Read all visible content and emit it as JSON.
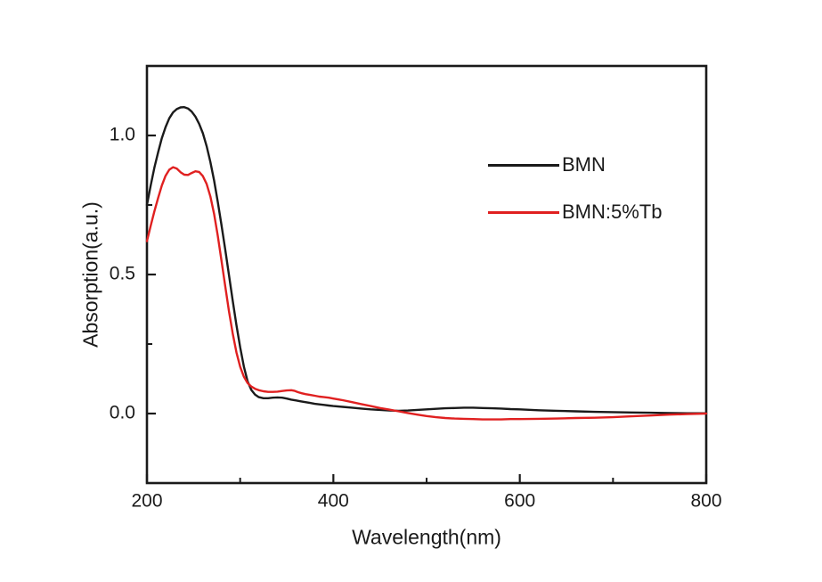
{
  "figure": {
    "background": "#ffffff",
    "frame_color": "#1a1a1a"
  },
  "chart_data": {
    "type": "line",
    "title": "",
    "xlabel": "Wavelength(nm)",
    "ylabel": "Absorption(a.u.)",
    "xlim": [
      200,
      800
    ],
    "ylim": [
      -0.25,
      1.25
    ],
    "grid": false,
    "frame": true,
    "tick_direction": "in",
    "x_major_ticks": [
      200,
      400,
      600,
      800
    ],
    "x_tick_labels": [
      "200",
      "400",
      "600",
      "800"
    ],
    "x_minor_ticks": [
      300,
      500,
      700
    ],
    "y_major_ticks": [
      0.0,
      0.5,
      1.0
    ],
    "y_tick_labels": [
      "0.0",
      "0.5",
      "1.0"
    ],
    "y_minor_ticks": [
      0.25,
      0.75
    ],
    "legend": {
      "position": "upper-right-inside",
      "entries": [
        {
          "label": "BMN",
          "color": "#1a1a1a"
        },
        {
          "label": "BMN:5%Tb",
          "color": "#e02020"
        }
      ]
    },
    "series": [
      {
        "name": "BMN",
        "color": "#1a1a1a",
        "peak_nm": 240,
        "peak_value": 1.1,
        "points": [
          [
            200,
            0.75
          ],
          [
            204,
            0.82
          ],
          [
            208,
            0.885
          ],
          [
            212,
            0.94
          ],
          [
            216,
            0.99
          ],
          [
            220,
            1.03
          ],
          [
            224,
            1.062
          ],
          [
            228,
            1.083
          ],
          [
            232,
            1.095
          ],
          [
            236,
            1.101
          ],
          [
            240,
            1.102
          ],
          [
            244,
            1.097
          ],
          [
            248,
            1.086
          ],
          [
            252,
            1.068
          ],
          [
            256,
            1.042
          ],
          [
            260,
            1.008
          ],
          [
            264,
            0.962
          ],
          [
            268,
            0.905
          ],
          [
            272,
            0.838
          ],
          [
            276,
            0.762
          ],
          [
            280,
            0.678
          ],
          [
            284,
            0.59
          ],
          [
            288,
            0.498
          ],
          [
            292,
            0.406
          ],
          [
            296,
            0.318
          ],
          [
            300,
            0.238
          ],
          [
            304,
            0.168
          ],
          [
            308,
            0.116
          ],
          [
            312,
            0.085
          ],
          [
            316,
            0.068
          ],
          [
            320,
            0.059
          ],
          [
            325,
            0.055
          ],
          [
            330,
            0.055
          ],
          [
            335,
            0.057
          ],
          [
            340,
            0.058
          ],
          [
            345,
            0.057
          ],
          [
            350,
            0.054
          ],
          [
            355,
            0.05
          ],
          [
            360,
            0.047
          ],
          [
            365,
            0.044
          ],
          [
            370,
            0.041
          ],
          [
            375,
            0.038
          ],
          [
            380,
            0.035
          ],
          [
            385,
            0.033
          ],
          [
            390,
            0.031
          ],
          [
            395,
            0.029
          ],
          [
            400,
            0.027
          ],
          [
            410,
            0.024
          ],
          [
            420,
            0.021
          ],
          [
            430,
            0.018
          ],
          [
            440,
            0.015
          ],
          [
            450,
            0.013
          ],
          [
            460,
            0.011
          ],
          [
            470,
            0.01
          ],
          [
            480,
            0.011
          ],
          [
            490,
            0.013
          ],
          [
            500,
            0.015
          ],
          [
            510,
            0.017
          ],
          [
            520,
            0.019
          ],
          [
            530,
            0.02
          ],
          [
            540,
            0.021
          ],
          [
            550,
            0.021
          ],
          [
            560,
            0.02
          ],
          [
            570,
            0.019
          ],
          [
            580,
            0.018
          ],
          [
            590,
            0.016
          ],
          [
            600,
            0.015
          ],
          [
            620,
            0.012
          ],
          [
            640,
            0.01
          ],
          [
            660,
            0.008
          ],
          [
            680,
            0.006
          ],
          [
            700,
            0.005
          ],
          [
            720,
            0.004
          ],
          [
            740,
            0.003
          ],
          [
            760,
            0.002
          ],
          [
            780,
            0.001
          ],
          [
            800,
            0.001
          ]
        ]
      },
      {
        "name": "BMN:5%Tb",
        "color": "#e02020",
        "peak_nm": 228,
        "peak_value": 0.89,
        "points": [
          [
            200,
            0.62
          ],
          [
            204,
            0.675
          ],
          [
            208,
            0.728
          ],
          [
            212,
            0.776
          ],
          [
            216,
            0.82
          ],
          [
            220,
            0.855
          ],
          [
            224,
            0.877
          ],
          [
            228,
            0.886
          ],
          [
            232,
            0.881
          ],
          [
            236,
            0.868
          ],
          [
            240,
            0.859
          ],
          [
            244,
            0.858
          ],
          [
            248,
            0.865
          ],
          [
            252,
            0.871
          ],
          [
            256,
            0.869
          ],
          [
            260,
            0.854
          ],
          [
            264,
            0.826
          ],
          [
            268,
            0.781
          ],
          [
            272,
            0.718
          ],
          [
            276,
            0.64
          ],
          [
            280,
            0.55
          ],
          [
            284,
            0.458
          ],
          [
            288,
            0.368
          ],
          [
            292,
            0.288
          ],
          [
            296,
            0.22
          ],
          [
            300,
            0.168
          ],
          [
            304,
            0.132
          ],
          [
            308,
            0.11
          ],
          [
            312,
            0.097
          ],
          [
            316,
            0.089
          ],
          [
            320,
            0.084
          ],
          [
            325,
            0.08
          ],
          [
            330,
            0.078
          ],
          [
            335,
            0.078
          ],
          [
            340,
            0.079
          ],
          [
            345,
            0.081
          ],
          [
            350,
            0.083
          ],
          [
            355,
            0.084
          ],
          [
            358,
            0.082
          ],
          [
            362,
            0.077
          ],
          [
            366,
            0.073
          ],
          [
            370,
            0.07
          ],
          [
            375,
            0.067
          ],
          [
            380,
            0.064
          ],
          [
            385,
            0.061
          ],
          [
            390,
            0.059
          ],
          [
            395,
            0.057
          ],
          [
            400,
            0.054
          ],
          [
            410,
            0.048
          ],
          [
            420,
            0.041
          ],
          [
            430,
            0.034
          ],
          [
            440,
            0.027
          ],
          [
            450,
            0.02
          ],
          [
            460,
            0.014
          ],
          [
            470,
            0.008
          ],
          [
            480,
            0.002
          ],
          [
            490,
            -0.004
          ],
          [
            500,
            -0.009
          ],
          [
            510,
            -0.013
          ],
          [
            520,
            -0.016
          ],
          [
            530,
            -0.018
          ],
          [
            540,
            -0.019
          ],
          [
            550,
            -0.02
          ],
          [
            560,
            -0.021
          ],
          [
            570,
            -0.021
          ],
          [
            580,
            -0.021
          ],
          [
            590,
            -0.02
          ],
          [
            600,
            -0.02
          ],
          [
            620,
            -0.019
          ],
          [
            640,
            -0.018
          ],
          [
            660,
            -0.016
          ],
          [
            680,
            -0.015
          ],
          [
            700,
            -0.013
          ],
          [
            720,
            -0.01
          ],
          [
            740,
            -0.007
          ],
          [
            760,
            -0.004
          ],
          [
            780,
            -0.002
          ],
          [
            800,
            0
          ]
        ]
      }
    ]
  }
}
